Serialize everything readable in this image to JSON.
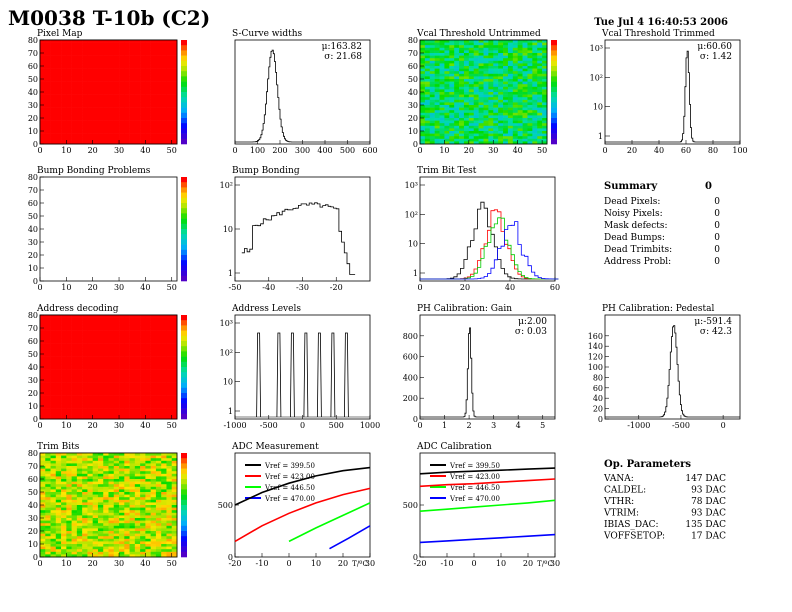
{
  "header": {
    "title": "M0038 T-10b (C2)",
    "date": "Tue Jul  4 16:40:53 2006"
  },
  "chart_data": [
    {
      "type": "heatmap",
      "title": "Pixel Map",
      "x_range": [
        0,
        52
      ],
      "y_range": [
        0,
        80
      ],
      "xticks": [
        0,
        10,
        20,
        30,
        40,
        50
      ],
      "yticks": [
        0,
        10,
        20,
        30,
        40,
        50,
        60,
        70,
        80
      ],
      "fill": "uniform-red",
      "palette": "rainbow"
    },
    {
      "type": "line",
      "title": "S-Curve widths",
      "stats": [
        "μ:163.82",
        "σ: 21.68"
      ],
      "x_range": [
        0,
        600
      ],
      "xticks": [
        0,
        100,
        200,
        300,
        400,
        500,
        600
      ],
      "peak": {
        "center": 163.82,
        "sigma": 21.68
      }
    },
    {
      "type": "heatmap",
      "title": "Vcal Threshold Untrimmed",
      "x_range": [
        0,
        52
      ],
      "y_range": [
        0,
        80
      ],
      "xticks": [
        0,
        10,
        20,
        30,
        40,
        50
      ],
      "yticks": [
        0,
        10,
        20,
        30,
        40,
        50,
        60,
        70,
        80
      ],
      "fill": "noise-green-cyan",
      "palette": "rainbow"
    },
    {
      "type": "line",
      "title": "Vcal Threshold Trimmed",
      "stats": [
        "μ:60.60",
        "σ: 1.42"
      ],
      "x_range": [
        0,
        100
      ],
      "xticks": [
        0,
        20,
        40,
        60,
        80,
        100
      ],
      "log_y": true,
      "yticks": [
        "1",
        "10",
        "10²",
        "10³"
      ],
      "peak": {
        "center": 60.6,
        "sigma": 1.42
      }
    },
    {
      "type": "heatmap",
      "title": "Bump Bonding Problems",
      "x_range": [
        0,
        52
      ],
      "y_range": [
        0,
        80
      ],
      "xticks": [
        0,
        10,
        20,
        30,
        40,
        50
      ],
      "yticks": [
        0,
        10,
        20,
        30,
        40,
        50,
        60,
        70,
        80
      ],
      "fill": "empty",
      "palette": "rainbow"
    },
    {
      "type": "line",
      "title": "Bump Bonding",
      "x_range": [
        -50,
        -10
      ],
      "xticks": [
        -50,
        -40,
        -30,
        -20
      ],
      "log_y": true,
      "yticks": [
        "1",
        "10",
        "10²"
      ]
    },
    {
      "type": "line",
      "title": "Trim Bit Test",
      "x_range": [
        0,
        60
      ],
      "xticks": [
        0,
        20,
        40,
        60
      ],
      "log_y": true,
      "yticks": [
        "1",
        "10",
        "10²",
        "10³"
      ],
      "series": [
        {
          "color": "#000000",
          "center": 27
        },
        {
          "color": "#ff0000",
          "center": 33
        },
        {
          "color": "#00cc00",
          "center": 34
        },
        {
          "color": "#0000ff",
          "center": 40
        }
      ]
    },
    {
      "type": "heatmap",
      "title": "Address decoding",
      "x_range": [
        0,
        52
      ],
      "y_range": [
        0,
        80
      ],
      "xticks": [
        0,
        10,
        20,
        30,
        40,
        50
      ],
      "yticks": [
        0,
        10,
        20,
        30,
        40,
        50,
        60,
        70,
        80
      ],
      "fill": "uniform-red",
      "palette": "rainbow"
    },
    {
      "type": "line",
      "title": "Address Levels",
      "x_range": [
        -1000,
        1000
      ],
      "xticks": [
        -1000,
        -500,
        0,
        500,
        1000
      ],
      "log_y": true,
      "yticks": [
        "1",
        "10",
        "10²",
        "10³"
      ],
      "peaks": [
        -650,
        -350,
        -150,
        50,
        250,
        450,
        650
      ]
    },
    {
      "type": "line",
      "title": "PH Calibration: Gain",
      "stats": [
        "μ:2.00",
        "σ: 0.03"
      ],
      "x_range": [
        0,
        5.5
      ],
      "xticks": [
        0,
        1,
        2,
        3,
        4,
        5
      ],
      "yticks": [
        0,
        200,
        400,
        600,
        800
      ],
      "peak": {
        "center": 2.0,
        "sigma": 0.03
      }
    },
    {
      "type": "line",
      "title": "PH Calibration: Pedestal",
      "stats": [
        "μ:-591.4",
        "σ: 42.3"
      ],
      "x_range": [
        -1400,
        200
      ],
      "xticks": [
        -1000,
        -500,
        0
      ],
      "yticks": [
        0,
        20,
        40,
        60,
        80,
        100,
        120,
        140,
        160
      ],
      "peak": {
        "center": -591.4,
        "sigma": 42.3
      }
    },
    {
      "type": "heatmap",
      "title": "Trim Bits",
      "x_range": [
        0,
        52
      ],
      "y_range": [
        0,
        80
      ],
      "xticks": [
        0,
        10,
        20,
        30,
        40,
        50
      ],
      "yticks": [
        0,
        10,
        20,
        30,
        40,
        50,
        60,
        70,
        80
      ],
      "fill": "noise-yellow-green",
      "palette": "rainbow"
    },
    {
      "type": "line",
      "title": "ADC Measurement",
      "x_range": [
        -20,
        30
      ],
      "xticks": [
        -20,
        -10,
        0,
        10,
        20,
        30
      ],
      "xlabel": "T/ºC",
      "yticks": [
        0,
        500
      ],
      "y_range": [
        0,
        1000
      ],
      "series": [
        {
          "name": "Vref = 399.50",
          "color": "#000000",
          "x": [
            -20,
            -10,
            0,
            10,
            20,
            30
          ],
          "y": [
            500,
            620,
            710,
            780,
            830,
            860
          ]
        },
        {
          "name": "Vref = 423.00",
          "color": "#ff0000",
          "x": [
            -20,
            -10,
            0,
            10,
            20,
            30
          ],
          "y": [
            150,
            300,
            420,
            520,
            600,
            660
          ]
        },
        {
          "name": "Vref = 446.50",
          "color": "#00ff00",
          "x": [
            0,
            10,
            20,
            30
          ],
          "y": [
            150,
            280,
            400,
            520
          ]
        },
        {
          "name": "Vref = 470.00",
          "color": "#0000ff",
          "x": [
            15,
            22,
            30
          ],
          "y": [
            80,
            180,
            300
          ]
        }
      ]
    },
    {
      "type": "line",
      "title": "ADC Calibration",
      "x_range": [
        -20,
        30
      ],
      "xticks": [
        -20,
        -10,
        0,
        10,
        20,
        30
      ],
      "xlabel": "T/ºC",
      "yticks": [
        0,
        500
      ],
      "y_range": [
        0,
        1000
      ],
      "series": [
        {
          "name": "Vref = 399.50",
          "color": "#000000",
          "x": [
            -20,
            -10,
            0,
            10,
            20,
            30
          ],
          "y": [
            800,
            815,
            825,
            835,
            845,
            855
          ]
        },
        {
          "name": "Vref = 423.00",
          "color": "#ff0000",
          "x": [
            -20,
            -10,
            0,
            10,
            20,
            30
          ],
          "y": [
            680,
            695,
            705,
            720,
            735,
            750
          ]
        },
        {
          "name": "Vref = 446.50",
          "color": "#00ff00",
          "x": [
            -20,
            -10,
            0,
            10,
            20,
            30
          ],
          "y": [
            440,
            460,
            480,
            500,
            520,
            545
          ]
        },
        {
          "name": "Vref = 470.00",
          "color": "#0000ff",
          "x": [
            -20,
            -10,
            0,
            10,
            20,
            30
          ],
          "y": [
            140,
            155,
            170,
            185,
            200,
            215
          ]
        }
      ]
    }
  ],
  "summary": {
    "title": "Summary",
    "total": "0",
    "rows": [
      {
        "label": "Dead Pixels:",
        "value": "0"
      },
      {
        "label": "Noisy Pixels:",
        "value": "0"
      },
      {
        "label": "Mask defects:",
        "value": "0"
      },
      {
        "label": "Dead Bumps:",
        "value": "0"
      },
      {
        "label": "Dead Trimbits:",
        "value": "0"
      },
      {
        "label": "Address Probl:",
        "value": "0"
      }
    ]
  },
  "params": {
    "title": "Op. Parameters",
    "rows": [
      {
        "label": "VANA:",
        "value": "147 DAC"
      },
      {
        "label": "CALDEL:",
        "value": "93 DAC"
      },
      {
        "label": "VTHR:",
        "value": "78 DAC"
      },
      {
        "label": "VTRIM:",
        "value": "93 DAC"
      },
      {
        "label": "IBIAS_DAC:",
        "value": "135 DAC"
      },
      {
        "label": "VOFFSETOP:",
        "value": "17 DAC"
      }
    ]
  }
}
